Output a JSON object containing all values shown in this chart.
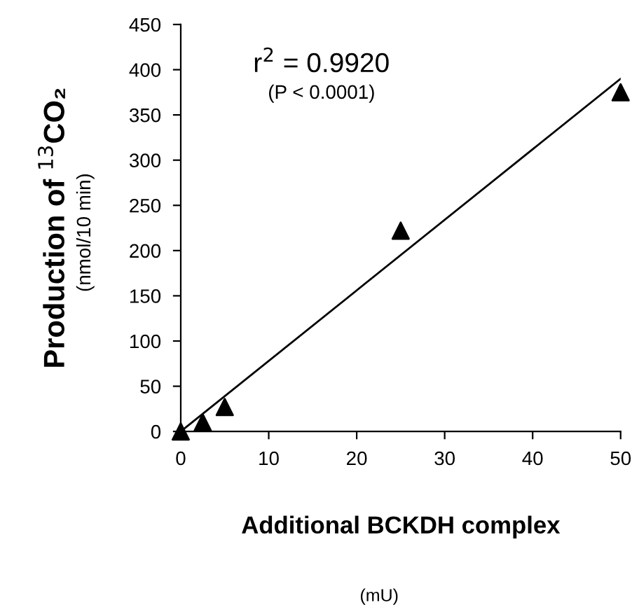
{
  "chart_data": {
    "type": "scatter",
    "xlabel": "Additional BCKDH complex",
    "ylabel": "Production of $^{13}$CO₂",
    "series": [
      {
        "color": "#000000",
        "marker": "triangle",
        "x": [
          0,
          2.5,
          5,
          25,
          50
        ],
        "values": [
          0,
          10,
          27,
          222,
          375
        ]
      },
      {
        "type": "line",
        "color": "#000000",
        "marker": "none",
        "x": [
          0,
          50
        ],
        "values": [
          0,
          390
        ]
      }
    ],
    "xlim": [
      0,
      50
    ],
    "ylim": [
      0,
      450
    ],
    "xticks": [
      0,
      10,
      20,
      30,
      40,
      50
    ],
    "yticks": [
      0,
      50,
      100,
      150,
      200,
      250,
      300,
      350,
      400,
      450
    ],
    "grid": false,
    "legend": false,
    "annotations": [
      "r$^{2}$ = 0.9920",
      "(P < 0.0001)",
      "(nmol/10 min)",
      "(mU)"
    ]
  }
}
